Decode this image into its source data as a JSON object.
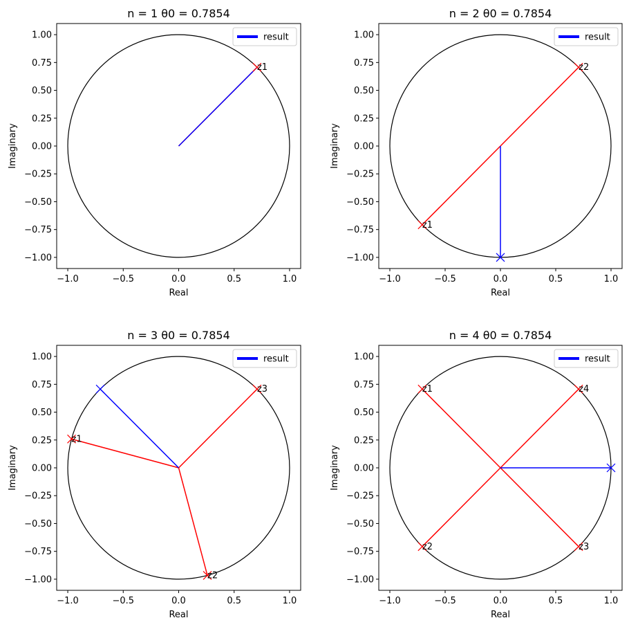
{
  "chart_data": [
    {
      "type": "line",
      "title": "n = 1  θ0 = 0.7854",
      "n": 1,
      "theta0": 0.7854,
      "xlabel": "Real",
      "ylabel": "Imaginary",
      "xlim": [
        -1.1,
        1.1
      ],
      "ylim": [
        -1.1,
        1.1
      ],
      "xticks": [
        "−1.0",
        "−0.5",
        "0.0",
        "0.5",
        "1.0"
      ],
      "xtick_values": [
        -1.0,
        -0.5,
        0.0,
        0.5,
        1.0
      ],
      "yticks": [
        "−1.00",
        "−0.75",
        "−0.50",
        "−0.25",
        "0.00",
        "0.25",
        "0.50",
        "0.75",
        "1.00"
      ],
      "ytick_values": [
        -1.0,
        -0.75,
        -0.5,
        -0.25,
        0.0,
        0.25,
        0.5,
        0.75,
        1.0
      ],
      "legend": {
        "label": "result",
        "color": "#0000ff",
        "location": "upper right"
      },
      "unit_circle": {
        "radius": 1,
        "color": "#000000"
      },
      "roots": [
        {
          "label": "z1",
          "x": 0.7071,
          "y": 0.7071
        }
      ],
      "root_color": "#ff0000",
      "result": {
        "x": 0.7071,
        "y": 0.7071
      },
      "result_color": "#0000ff",
      "show_result_marker": false
    },
    {
      "type": "line",
      "title": "n = 2  θ0 = 0.7854",
      "n": 2,
      "theta0": 0.7854,
      "xlabel": "Real",
      "ylabel": "Imaginary",
      "xlim": [
        -1.1,
        1.1
      ],
      "ylim": [
        -1.1,
        1.1
      ],
      "xticks": [
        "−1.0",
        "−0.5",
        "0.0",
        "0.5",
        "1.0"
      ],
      "xtick_values": [
        -1.0,
        -0.5,
        0.0,
        0.5,
        1.0
      ],
      "yticks": [
        "−1.00",
        "−0.75",
        "−0.50",
        "−0.25",
        "0.00",
        "0.25",
        "0.50",
        "0.75",
        "1.00"
      ],
      "ytick_values": [
        -1.0,
        -0.75,
        -0.5,
        -0.25,
        0.0,
        0.25,
        0.5,
        0.75,
        1.0
      ],
      "legend": {
        "label": "result",
        "color": "#0000ff",
        "location": "upper right"
      },
      "unit_circle": {
        "radius": 1,
        "color": "#000000"
      },
      "roots": [
        {
          "label": "z1",
          "x": -0.7071,
          "y": -0.7071
        },
        {
          "label": "z2",
          "x": 0.7071,
          "y": 0.7071
        }
      ],
      "root_color": "#ff0000",
      "result": {
        "x": 0.0,
        "y": -1.0
      },
      "result_color": "#0000ff",
      "show_result_marker": true
    },
    {
      "type": "line",
      "title": "n = 3  θ0 = 0.7854",
      "n": 3,
      "theta0": 0.7854,
      "xlabel": "Real",
      "ylabel": "Imaginary",
      "xlim": [
        -1.1,
        1.1
      ],
      "ylim": [
        -1.1,
        1.1
      ],
      "xticks": [
        "−1.0",
        "−0.5",
        "0.0",
        "0.5",
        "1.0"
      ],
      "xtick_values": [
        -1.0,
        -0.5,
        0.0,
        0.5,
        1.0
      ],
      "yticks": [
        "−1.00",
        "−0.75",
        "−0.50",
        "−0.25",
        "0.00",
        "0.25",
        "0.50",
        "0.75",
        "1.00"
      ],
      "ytick_values": [
        -1.0,
        -0.75,
        -0.5,
        -0.25,
        0.0,
        0.25,
        0.5,
        0.75,
        1.0
      ],
      "legend": {
        "label": "result",
        "color": "#0000ff",
        "location": "upper right"
      },
      "unit_circle": {
        "radius": 1,
        "color": "#000000"
      },
      "roots": [
        {
          "label": "z1",
          "x": -0.9659,
          "y": 0.2588
        },
        {
          "label": "z2",
          "x": 0.2588,
          "y": -0.9659
        },
        {
          "label": "z3",
          "x": 0.7071,
          "y": 0.7071
        }
      ],
      "root_color": "#ff0000",
      "result": {
        "x": -0.7071,
        "y": 0.7071
      },
      "result_color": "#0000ff",
      "show_result_marker": true
    },
    {
      "type": "line",
      "title": "n = 4  θ0 = 0.7854",
      "n": 4,
      "theta0": 0.7854,
      "xlabel": "Real",
      "ylabel": "Imaginary",
      "xlim": [
        -1.1,
        1.1
      ],
      "ylim": [
        -1.1,
        1.1
      ],
      "xticks": [
        "−1.0",
        "−0.5",
        "0.0",
        "0.5",
        "1.0"
      ],
      "xtick_values": [
        -1.0,
        -0.5,
        0.0,
        0.5,
        1.0
      ],
      "yticks": [
        "−1.00",
        "−0.75",
        "−0.50",
        "−0.25",
        "0.00",
        "0.25",
        "0.50",
        "0.75",
        "1.00"
      ],
      "ytick_values": [
        -1.0,
        -0.75,
        -0.5,
        -0.25,
        0.0,
        0.25,
        0.5,
        0.75,
        1.0
      ],
      "legend": {
        "label": "result",
        "color": "#0000ff",
        "location": "upper right"
      },
      "unit_circle": {
        "radius": 1,
        "color": "#000000"
      },
      "roots": [
        {
          "label": "z1",
          "x": -0.7071,
          "y": 0.7071
        },
        {
          "label": "z2",
          "x": -0.7071,
          "y": -0.7071
        },
        {
          "label": "z3",
          "x": 0.7071,
          "y": -0.7071
        },
        {
          "label": "z4",
          "x": 0.7071,
          "y": 0.7071
        }
      ],
      "root_color": "#ff0000",
      "result": {
        "x": 1.0,
        "y": 0.0
      },
      "result_color": "#0000ff",
      "show_result_marker": true
    }
  ]
}
